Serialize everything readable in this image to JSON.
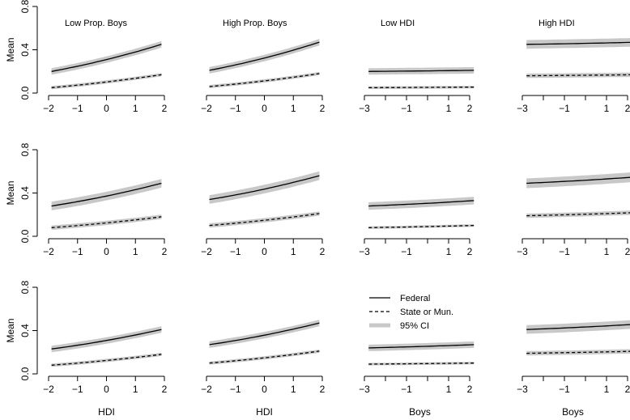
{
  "chart_data": {
    "type": "line",
    "layout": "3 rows x 4 columns of small-multiple panels",
    "panel_titles": [
      "Low Prop. Boys",
      "High Prop. Boys",
      "Low HDI",
      "High HDI"
    ],
    "ylabel": "Mean",
    "xlabels": [
      "HDI",
      "HDI",
      "Boys",
      "Boys"
    ],
    "ylim": [
      0,
      0.8
    ],
    "y_ticks": [
      "0.0",
      "0.4",
      "0.8"
    ],
    "y_tick_values": [
      0,
      0.4,
      0.8
    ],
    "x_ranges": [
      [
        -2,
        2
      ],
      [
        -2,
        2
      ],
      [
        -3,
        2.5
      ],
      [
        -3,
        2.5
      ]
    ],
    "x_ticks": [
      {
        "values": [
          -2,
          -1,
          0,
          1,
          2
        ],
        "labels": [
          "−2",
          "−1",
          "0",
          "1",
          "2"
        ]
      },
      {
        "values": [
          -2,
          -1,
          0,
          1,
          2
        ],
        "labels": [
          "−2",
          "−1",
          "0",
          "1",
          "2"
        ]
      },
      {
        "values": [
          -3,
          -2,
          -1,
          0,
          1,
          2
        ],
        "labels": [
          "−3",
          "",
          "−1",
          "",
          "1",
          "2"
        ]
      },
      {
        "values": [
          -3,
          -2,
          -1,
          0,
          1,
          2
        ],
        "labels": [
          "−3",
          "",
          "−1",
          "",
          "1",
          "2"
        ]
      }
    ],
    "legend": {
      "placement": "bottom row, third panel",
      "entries": [
        {
          "label": "Federal",
          "style": "solid"
        },
        {
          "label": "State or Mun.",
          "style": "dashed"
        },
        {
          "label": "95% CI",
          "style": "band"
        }
      ]
    },
    "colors": {
      "line": "#000000",
      "ci_band": "#c8c8c8"
    },
    "panels": [
      {
        "row": 0,
        "col": 0,
        "federal": [
          [
            -1.9,
            0.2
          ],
          [
            1.9,
            0.45
          ]
        ],
        "state": [
          [
            -1.9,
            0.05
          ],
          [
            1.9,
            0.17
          ]
        ],
        "federal_ci": 0.03,
        "state_ci": 0.015
      },
      {
        "row": 0,
        "col": 1,
        "federal": [
          [
            -1.9,
            0.21
          ],
          [
            1.9,
            0.47
          ]
        ],
        "state": [
          [
            -1.9,
            0.06
          ],
          [
            1.9,
            0.18
          ]
        ],
        "federal_ci": 0.03,
        "state_ci": 0.015
      },
      {
        "row": 0,
        "col": 2,
        "federal": [
          [
            -2.8,
            0.2
          ],
          [
            2.2,
            0.21
          ]
        ],
        "state": [
          [
            -2.8,
            0.05
          ],
          [
            2.2,
            0.055
          ]
        ],
        "federal_ci": 0.03,
        "state_ci": 0.012
      },
      {
        "row": 0,
        "col": 3,
        "federal": [
          [
            -2.8,
            0.45
          ],
          [
            2.5,
            0.47
          ]
        ],
        "state": [
          [
            -2.8,
            0.16
          ],
          [
            2.5,
            0.17
          ]
        ],
        "federal_ci": 0.04,
        "state_ci": 0.02
      },
      {
        "row": 1,
        "col": 0,
        "federal": [
          [
            -1.9,
            0.28
          ],
          [
            1.9,
            0.49
          ]
        ],
        "state": [
          [
            -1.9,
            0.08
          ],
          [
            1.9,
            0.18
          ]
        ],
        "federal_ci": 0.04,
        "state_ci": 0.02
      },
      {
        "row": 1,
        "col": 1,
        "federal": [
          [
            -1.9,
            0.34
          ],
          [
            1.9,
            0.56
          ]
        ],
        "state": [
          [
            -1.9,
            0.1
          ],
          [
            1.9,
            0.21
          ]
        ],
        "federal_ci": 0.04,
        "state_ci": 0.02
      },
      {
        "row": 1,
        "col": 2,
        "federal": [
          [
            -2.8,
            0.28
          ],
          [
            2.2,
            0.33
          ]
        ],
        "state": [
          [
            -2.8,
            0.08
          ],
          [
            2.2,
            0.1
          ]
        ],
        "federal_ci": 0.035,
        "state_ci": 0.012
      },
      {
        "row": 1,
        "col": 3,
        "federal": [
          [
            -2.8,
            0.49
          ],
          [
            2.5,
            0.55
          ]
        ],
        "state": [
          [
            -2.8,
            0.19
          ],
          [
            2.5,
            0.22
          ]
        ],
        "federal_ci": 0.045,
        "state_ci": 0.02
      },
      {
        "row": 2,
        "col": 0,
        "federal": [
          [
            -1.9,
            0.23
          ],
          [
            1.9,
            0.41
          ]
        ],
        "state": [
          [
            -1.9,
            0.08
          ],
          [
            1.9,
            0.18
          ]
        ],
        "federal_ci": 0.03,
        "state_ci": 0.015
      },
      {
        "row": 2,
        "col": 1,
        "federal": [
          [
            -1.9,
            0.27
          ],
          [
            1.9,
            0.47
          ]
        ],
        "state": [
          [
            -1.9,
            0.1
          ],
          [
            1.9,
            0.21
          ]
        ],
        "federal_ci": 0.03,
        "state_ci": 0.015
      },
      {
        "row": 2,
        "col": 2,
        "federal": [
          [
            -2.8,
            0.24
          ],
          [
            2.2,
            0.27
          ]
        ],
        "state": [
          [
            -2.8,
            0.09
          ],
          [
            2.2,
            0.1
          ]
        ],
        "federal_ci": 0.03,
        "state_ci": 0.012
      },
      {
        "row": 2,
        "col": 3,
        "federal": [
          [
            -2.8,
            0.41
          ],
          [
            2.5,
            0.46
          ]
        ],
        "state": [
          [
            -2.8,
            0.19
          ],
          [
            2.5,
            0.21
          ]
        ],
        "federal_ci": 0.04,
        "state_ci": 0.02
      }
    ]
  }
}
